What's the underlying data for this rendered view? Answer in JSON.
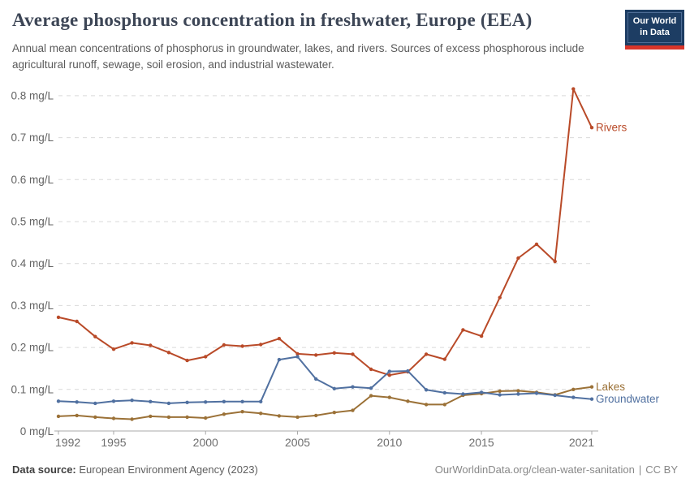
{
  "header": {
    "title": "Average phosphorus concentration in freshwater, Europe (EEA)",
    "subtitle": "Annual mean concentrations of phosphorus in groundwater, lakes, and rivers. Sources of excess phosphorous include agricultural runoff, sewage, soil erosion, and industrial wastewater.",
    "logo": {
      "line1": "Our World",
      "line2": "in Data",
      "bg_color": "#1d3d63",
      "bar_color": "#d8352a"
    }
  },
  "footer": {
    "source_label": "Data source:",
    "source_value": "European Environment Agency (2023)",
    "link": "OurWorldinData.org/clean-water-sanitation",
    "separator": "|",
    "license": "CC BY"
  },
  "chart_data": {
    "type": "line",
    "title": "Average phosphorus concentration in freshwater, Europe (EEA)",
    "unit": "mg/L",
    "xlabel": "",
    "ylabel": "mg/L",
    "xlim": [
      1992,
      2021
    ],
    "ylim": [
      0,
      0.85
    ],
    "grid": "horizontal-dashed",
    "legend_position": "end-of-line-labels",
    "x_ticks": [
      1992,
      1995,
      2000,
      2005,
      2010,
      2015,
      2021
    ],
    "y_ticks": [
      0,
      0.1,
      0.2,
      0.3,
      0.4,
      0.5,
      0.6,
      0.7,
      0.8
    ],
    "x": [
      1992,
      1993,
      1994,
      1995,
      1996,
      1997,
      1998,
      1999,
      2000,
      2001,
      2002,
      2003,
      2004,
      2005,
      2006,
      2007,
      2008,
      2009,
      2010,
      2011,
      2012,
      2013,
      2014,
      2015,
      2016,
      2017,
      2018,
      2019,
      2020,
      2021
    ],
    "series": [
      {
        "name": "Rivers",
        "color": "#B94A28",
        "values": [
          0.272,
          0.262,
          0.226,
          0.196,
          0.211,
          0.205,
          0.188,
          0.169,
          0.178,
          0.206,
          0.203,
          0.207,
          0.221,
          0.185,
          0.182,
          0.187,
          0.184,
          0.148,
          0.134,
          0.142,
          0.184,
          0.172,
          0.242,
          0.227,
          0.319,
          0.413,
          0.446,
          0.405,
          0.816,
          0.724
        ]
      },
      {
        "name": "Lakes",
        "color": "#9B7137",
        "values": [
          0.036,
          0.038,
          0.034,
          0.031,
          0.029,
          0.036,
          0.034,
          0.034,
          0.032,
          0.041,
          0.047,
          0.043,
          0.037,
          0.034,
          0.038,
          0.045,
          0.05,
          0.085,
          0.081,
          0.072,
          0.064,
          0.064,
          0.086,
          0.09,
          0.096,
          0.097,
          0.093,
          0.087,
          0.1,
          0.106
        ]
      },
      {
        "name": "Groundwater",
        "color": "#5070A0",
        "values": [
          0.072,
          0.07,
          0.067,
          0.072,
          0.074,
          0.071,
          0.067,
          0.069,
          0.07,
          0.071,
          0.071,
          0.071,
          0.171,
          0.178,
          0.125,
          0.102,
          0.106,
          0.103,
          0.143,
          0.144,
          0.099,
          0.092,
          0.089,
          0.093,
          0.087,
          0.089,
          0.091,
          0.086,
          0.081,
          0.077
        ]
      }
    ],
    "style": {
      "gridline_color": "#d9d9d9",
      "axis_color": "#a8a8a8",
      "tick_label_color": "#6e6e6e",
      "y_label_color": "#636363"
    }
  }
}
